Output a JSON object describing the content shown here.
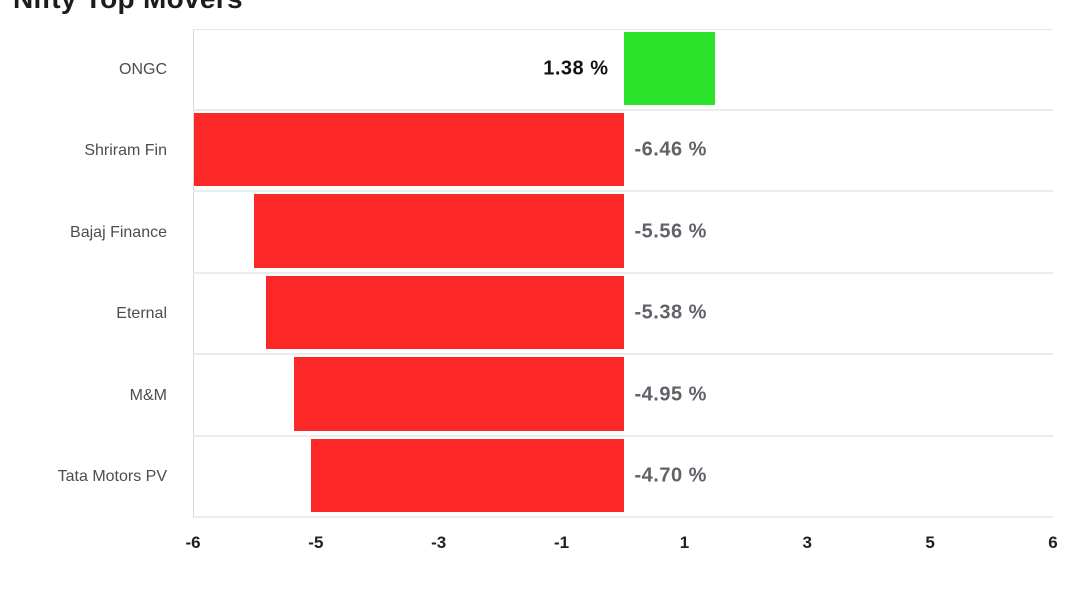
{
  "page": {
    "title": "Nifty Top Movers"
  },
  "colors": {
    "positive_bar": "#2BE32B",
    "negative_bar": "#FC2828",
    "category_label": "#4d4d4d",
    "negative_value_label": "#5f6368",
    "positive_value_label": "#121212",
    "axis_tick": "#212121",
    "row_separator": "#ececec",
    "plot_left_border": "#d9d9d9"
  },
  "chart_data": {
    "type": "bar",
    "orientation": "horizontal",
    "title": "Nifty Top Movers",
    "categories": [
      "ONGC",
      "Shriram Fin",
      "Bajaj Finance",
      "Eternal",
      "M&M",
      "Tata Motors PV"
    ],
    "values": [
      1.38,
      -6.46,
      -5.56,
      -5.38,
      -4.95,
      -4.7
    ],
    "data_labels": [
      "1.38 %",
      "-6.46 %",
      "-5.56 %",
      "-5.38 %",
      "-4.95 %",
      "-4.70 %"
    ],
    "x_tick_labels": [
      "-6",
      "-5",
      "-3",
      "-1",
      "1",
      "3",
      "5",
      "6"
    ],
    "xlim": [
      -6.46,
      6.46
    ],
    "xlabel": "",
    "ylabel": "",
    "unit": "%",
    "positive_color": "#2BE32B",
    "negative_color": "#FC2828",
    "grid": "row-separators",
    "legend": "none"
  }
}
